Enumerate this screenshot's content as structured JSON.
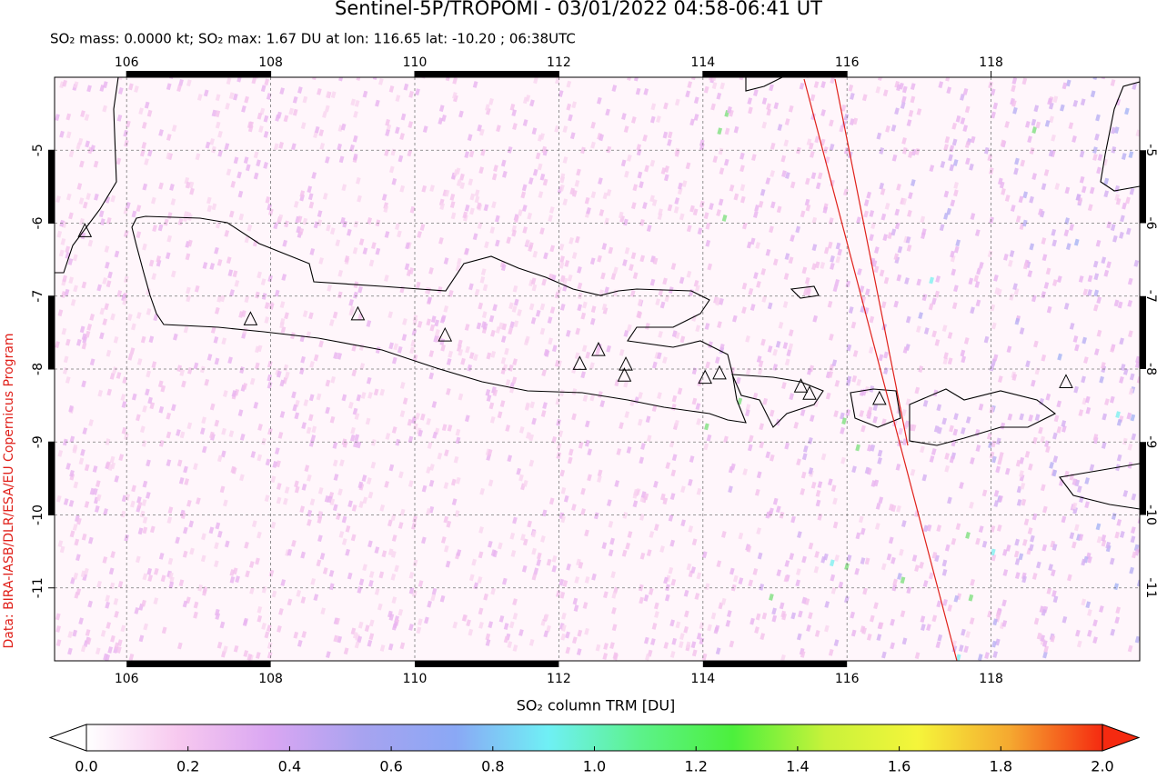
{
  "chart_data": {
    "type": "map",
    "title": "Sentinel-5P/TROPOMI - 03/01/2022 04:58-06:41 UT",
    "subtitle": "SO₂ mass: 0.0000 kt; SO₂ max: 1.67 DU at lon: 116.65 lat: -10.20 ; 06:38UTC",
    "credit": "Data: BIRA-IASB/DLR/ESA/EU Copernicus Program",
    "xlim": [
      105,
      120
    ],
    "ylim": [
      -12,
      -4
    ],
    "xticks": [
      106,
      108,
      110,
      112,
      114,
      116,
      118
    ],
    "yticks": [
      -5,
      -6,
      -7,
      -8,
      -9,
      -10,
      -11
    ],
    "grid": true,
    "volcanoes": {
      "lon": [
        105.42,
        107.72,
        109.21,
        110.42,
        112.29,
        112.55,
        112.93,
        112.91,
        114.03,
        114.23,
        115.36,
        115.48,
        116.45,
        119.04
      ],
      "lat": [
        -6.11,
        -7.32,
        -7.25,
        -7.54,
        -7.93,
        -7.74,
        -7.94,
        -8.09,
        -8.12,
        -8.06,
        -8.24,
        -8.34,
        -8.41,
        -8.18
      ]
    },
    "colorbar": {
      "label": "SO₂ column TRM [DU]",
      "lim": [
        0,
        2
      ],
      "colors": [
        "#ffffff",
        "#f7c8ef",
        "#d9a6f2",
        "#a7a3f0",
        "#8aa8f5",
        "#6ff0f5",
        "#5cf28a",
        "#4cf03c",
        "#c8f23a",
        "#f5f53a",
        "#f5a830",
        "#f52a10"
      ],
      "ticks": [
        {
          "value": 0,
          "label": "0.0"
        },
        {
          "value": 0.2,
          "label": "0.2"
        },
        {
          "value": 0.4,
          "label": "0.4"
        },
        {
          "value": 0.6,
          "label": "0.6"
        },
        {
          "value": 0.8,
          "label": "0.8"
        },
        {
          "value": 1,
          "label": "1.0"
        },
        {
          "value": 1.2,
          "label": "1.2"
        },
        {
          "value": 1.4,
          "label": "1.4"
        },
        {
          "value": 1.6,
          "label": "1.6"
        },
        {
          "value": 1.8,
          "label": "1.8"
        },
        {
          "value": 2,
          "label": "2.0"
        }
      ]
    }
  }
}
